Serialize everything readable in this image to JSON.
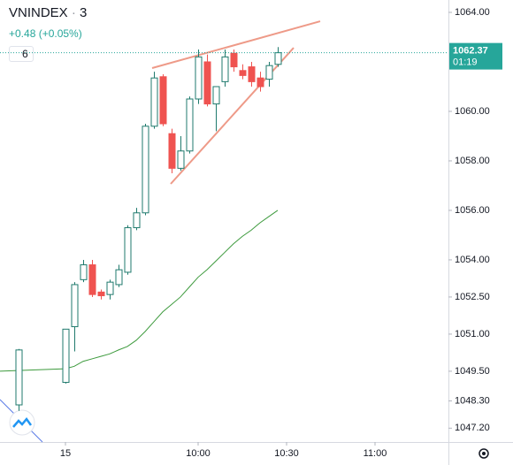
{
  "header": {
    "symbol": "VNINDEX",
    "interval": "3",
    "change": "+0.48 (+0.05%)",
    "indicator_count": 6
  },
  "chart_data": {
    "type": "candlestick",
    "up_color": "#26a69a",
    "down_color": "#ef5350",
    "xlim": [
      532.8,
      684.9
    ],
    "ylim": [
      1046.64,
      1064.5
    ],
    "xticks": [
      {
        "value": 555,
        "label": "15"
      },
      {
        "value": 600,
        "label": "10:00"
      },
      {
        "value": 630,
        "label": "10:30"
      },
      {
        "value": 660,
        "label": "11:00"
      }
    ],
    "yticks": [
      {
        "value": 1064,
        "label": "1064.00"
      },
      {
        "value": 1060,
        "label": "1060.00"
      },
      {
        "value": 1058,
        "label": "1058.00"
      },
      {
        "value": 1056,
        "label": "1056.00"
      },
      {
        "value": 1054,
        "label": "1054.00"
      },
      {
        "value": 1052.5,
        "label": "1052.50"
      },
      {
        "value": 1051,
        "label": "1051.00"
      },
      {
        "value": 1049.5,
        "label": "1049.50"
      },
      {
        "value": 1048.3,
        "label": "1048.30"
      },
      {
        "value": 1047.2,
        "label": "1047.20"
      }
    ],
    "grid": false,
    "candles": {
      "x": [
        539,
        555,
        558,
        561,
        564,
        567,
        570,
        573,
        576,
        579,
        582,
        585,
        588,
        591,
        594,
        597,
        600,
        603,
        606,
        609,
        612,
        615,
        618,
        621,
        624,
        627
      ],
      "open": [
        1048.14,
        1049.05,
        1051.3,
        1053.2,
        1053.8,
        1052.7,
        1052.6,
        1053.0,
        1053.5,
        1055.3,
        1055.9,
        1059.4,
        1061.4,
        1059.1,
        1057.7,
        1058.4,
        1060.5,
        1062.0,
        1060.3,
        1061.2,
        1062.35,
        1061.65,
        1061.8,
        1061.35,
        1061.3,
        1061.9
      ],
      "high": [
        1050.4,
        1051.2,
        1053.1,
        1054.0,
        1054.0,
        1052.8,
        1053.2,
        1053.8,
        1055.4,
        1056.1,
        1059.5,
        1061.6,
        1061.5,
        1059.3,
        1059.0,
        1060.6,
        1062.5,
        1062.3,
        1061.0,
        1062.5,
        1062.5,
        1061.9,
        1062.0,
        1061.6,
        1062.0,
        1062.6
      ],
      "low": [
        1047.9,
        1049.0,
        1050.3,
        1053.1,
        1052.5,
        1052.4,
        1052.4,
        1052.9,
        1053.4,
        1055.2,
        1055.8,
        1059.3,
        1059.4,
        1057.5,
        1057.6,
        1058.3,
        1060.3,
        1060.2,
        1059.2,
        1061.0,
        1061.6,
        1061.3,
        1061.0,
        1060.8,
        1061.0,
        1061.8
      ],
      "close": [
        1050.36,
        1051.2,
        1053.0,
        1053.8,
        1052.6,
        1052.55,
        1053.1,
        1053.6,
        1055.3,
        1055.9,
        1059.4,
        1061.35,
        1059.5,
        1057.7,
        1058.4,
        1060.5,
        1062.2,
        1060.3,
        1061.0,
        1062.2,
        1061.8,
        1061.45,
        1061.2,
        1061.0,
        1061.85,
        1062.37
      ]
    },
    "series": [
      {
        "type": "line",
        "color": "#3d9a3d",
        "x": [
          532.8,
          555,
          558,
          561,
          564,
          567,
          570,
          573,
          576,
          579,
          582,
          585,
          588,
          591,
          594,
          597,
          600,
          603,
          606,
          609,
          612,
          615,
          618,
          621,
          624,
          627
        ],
        "values": [
          1049.5,
          1049.6,
          1049.7,
          1049.9,
          1050.0,
          1050.1,
          1050.2,
          1050.36,
          1050.5,
          1050.75,
          1051.1,
          1051.5,
          1051.9,
          1052.2,
          1052.5,
          1052.9,
          1053.3,
          1053.6,
          1053.95,
          1054.3,
          1054.65,
          1054.95,
          1055.2,
          1055.5,
          1055.75,
          1056.0
        ]
      }
    ],
    "trendlines": [
      {
        "color": "#ee9a88",
        "x": [
          584.4,
          641.4
        ],
        "values": [
          1061.75,
          1063.64
        ]
      },
      {
        "color": "#ee9a88",
        "x": [
          590.7,
          632.4
        ],
        "values": [
          1057.07,
          1062.57
        ]
      }
    ],
    "last_price": 1062.37,
    "countdown": "01:19"
  }
}
